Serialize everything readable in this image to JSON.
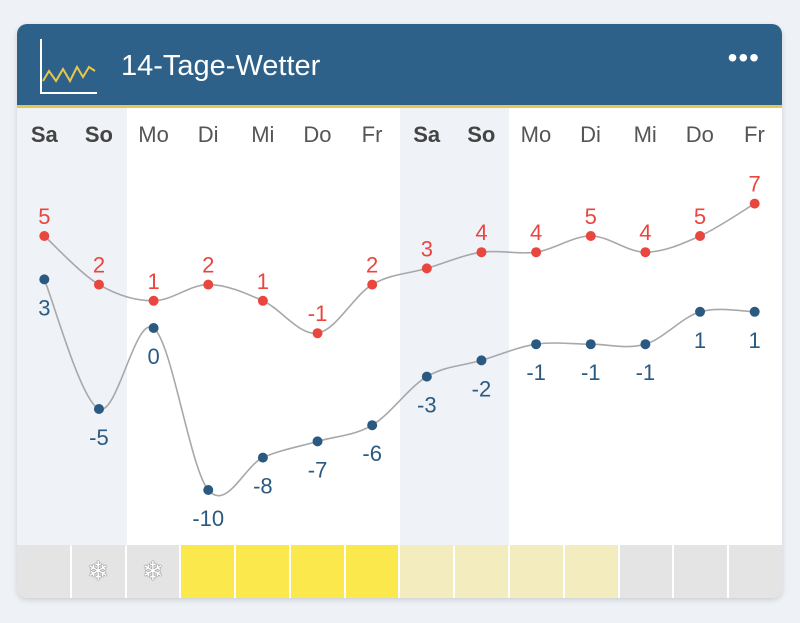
{
  "header": {
    "title": "14-Tage-Wetter",
    "more_label": "•••",
    "icon": "chart-line-icon"
  },
  "days": [
    {
      "label": "Sa",
      "weekend": true
    },
    {
      "label": "So",
      "weekend": true
    },
    {
      "label": "Mo",
      "weekend": false
    },
    {
      "label": "Di",
      "weekend": false
    },
    {
      "label": "Mi",
      "weekend": false
    },
    {
      "label": "Do",
      "weekend": false
    },
    {
      "label": "Fr",
      "weekend": false
    },
    {
      "label": "Sa",
      "weekend": true
    },
    {
      "label": "So",
      "weekend": true
    },
    {
      "label": "Mo",
      "weekend": false
    },
    {
      "label": "Di",
      "weekend": false
    },
    {
      "label": "Mi",
      "weekend": false
    },
    {
      "label": "Do",
      "weekend": false
    },
    {
      "label": "Fr",
      "weekend": false
    }
  ],
  "highs": [
    5,
    2,
    1,
    2,
    1,
    -1,
    2,
    3,
    4,
    4,
    5,
    4,
    5,
    7
  ],
  "lows": [
    3,
    -5,
    0,
    -10,
    -8,
    -7,
    -6,
    -3,
    -2,
    -1,
    -1,
    -1,
    1,
    1
  ],
  "colors": {
    "high": "#e8463f",
    "low": "#2a5a82",
    "line": "#a8a8a8",
    "header": "#2e6189"
  },
  "conditions": [
    {
      "type": "none",
      "color": "#e4e4e4",
      "icon": ""
    },
    {
      "type": "snow",
      "color": "#e4e4e4",
      "icon": "❄"
    },
    {
      "type": "snow",
      "color": "#e4e4e4",
      "icon": "❄"
    },
    {
      "type": "sun",
      "color": "#fbe84c",
      "icon": ""
    },
    {
      "type": "sun",
      "color": "#fbe84c",
      "icon": ""
    },
    {
      "type": "sun",
      "color": "#fbe84c",
      "icon": ""
    },
    {
      "type": "sun",
      "color": "#fbe84c",
      "icon": ""
    },
    {
      "type": "partly-sun",
      "color": "#f3ecbe",
      "icon": ""
    },
    {
      "type": "partly-sun",
      "color": "#f3ecbe",
      "icon": ""
    },
    {
      "type": "partly-sun",
      "color": "#f3ecbe",
      "icon": ""
    },
    {
      "type": "partly-sun",
      "color": "#f3ecbe",
      "icon": ""
    },
    {
      "type": "none",
      "color": "#e4e4e4",
      "icon": ""
    },
    {
      "type": "none",
      "color": "#e4e4e4",
      "icon": ""
    },
    {
      "type": "none",
      "color": "#e4e4e4",
      "icon": ""
    }
  ]
}
